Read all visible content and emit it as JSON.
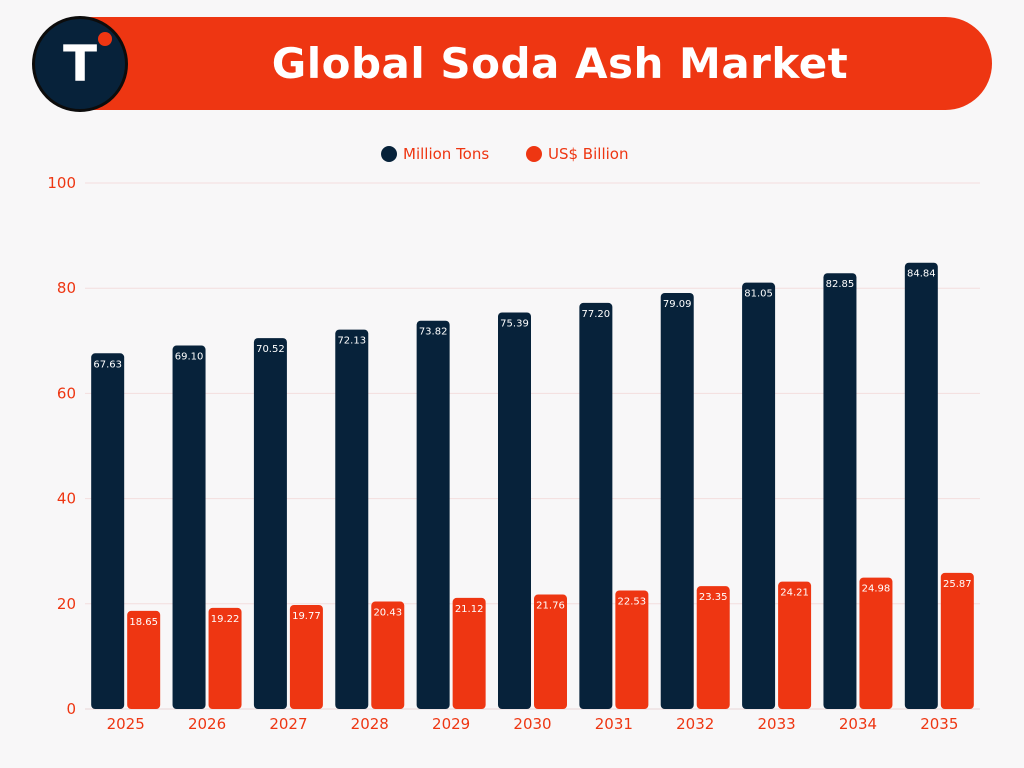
{
  "header": {
    "title": "Global Soda Ash Market",
    "logo_letter": "T"
  },
  "colors": {
    "navy": "#07223a",
    "orange": "#ee3612",
    "background": "#f8f7f8",
    "grid": "#f3dede"
  },
  "chart_data": {
    "type": "bar",
    "title": "Global Soda Ash Market",
    "xlabel": "",
    "ylabel": "",
    "ylim": [
      0,
      100
    ],
    "yticks": [
      0,
      20,
      40,
      60,
      80,
      100
    ],
    "grid": true,
    "legend_position": "top-center",
    "categories": [
      "2025",
      "2026",
      "2027",
      "2028",
      "2029",
      "2030",
      "2031",
      "2032",
      "2033",
      "2034",
      "2035"
    ],
    "series": [
      {
        "name": "Million Tons",
        "color": "#07223a",
        "values": [
          67.63,
          69.1,
          70.52,
          72.13,
          73.82,
          75.39,
          77.2,
          79.09,
          81.05,
          82.85,
          84.84
        ],
        "labels": [
          "67.63",
          "69.10",
          "70.52",
          "72.13",
          "73.82",
          "75.39",
          "77.20",
          "79.09",
          "81.05",
          "82.85",
          "84.84"
        ]
      },
      {
        "name": "US$ Billion",
        "color": "#ee3612",
        "values": [
          18.65,
          19.22,
          19.77,
          20.43,
          21.12,
          21.76,
          22.53,
          23.35,
          24.21,
          24.98,
          25.87
        ],
        "labels": [
          "18.65",
          "19.22",
          "19.77",
          "20.43",
          "21.12",
          "21.76",
          "22.53",
          "23.35",
          "24.21",
          "24.98",
          "25.87"
        ]
      }
    ]
  }
}
